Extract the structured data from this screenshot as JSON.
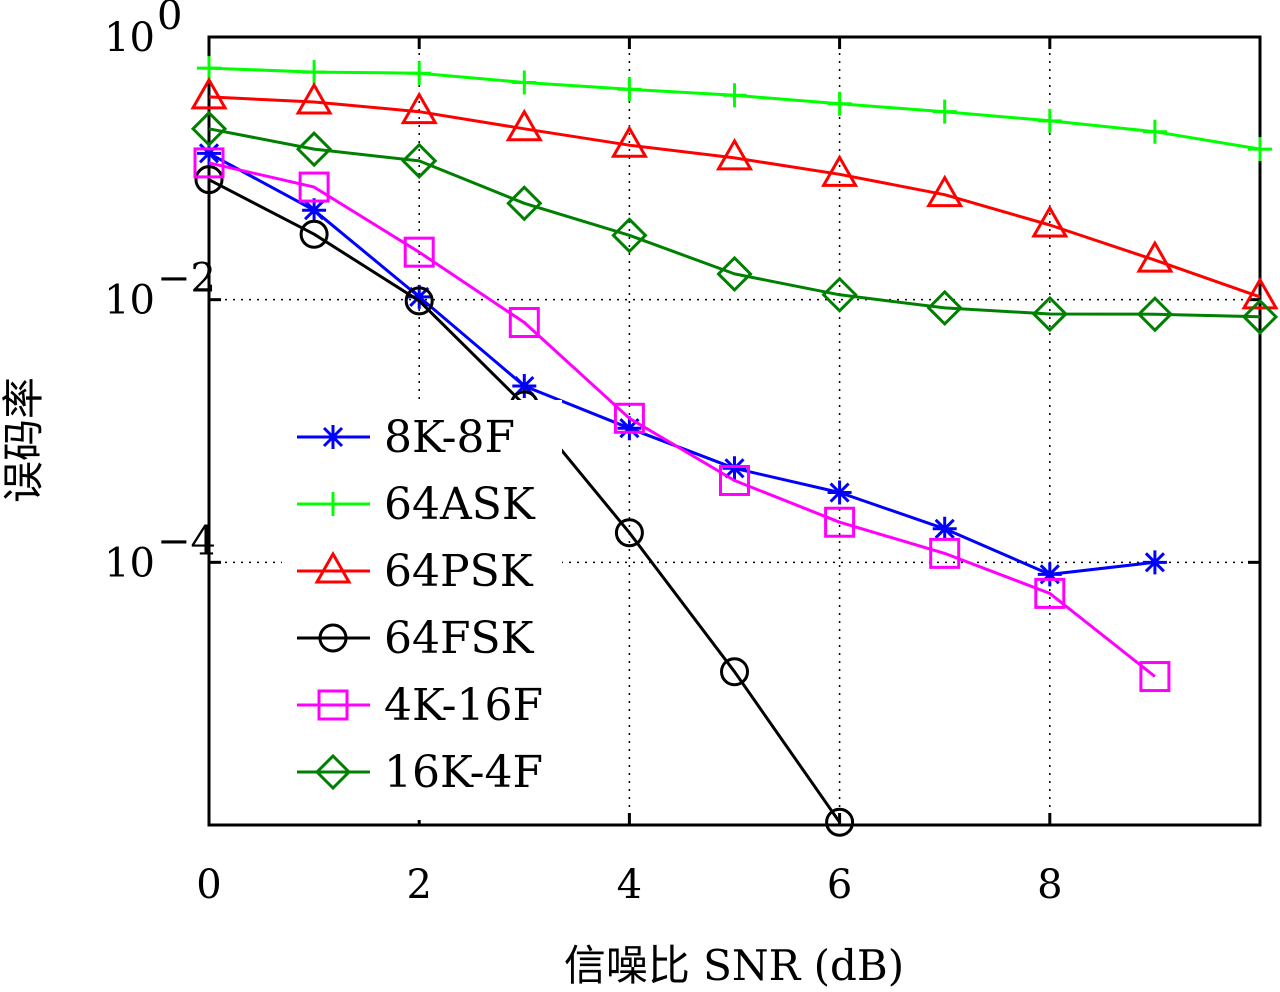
{
  "chart_data": {
    "type": "line",
    "xlabel": "信噪比 SNR (dB)",
    "ylabel": "误码率",
    "xlim": [
      0,
      10
    ],
    "ylim": [
      1e-06,
      1
    ],
    "yscale": "log",
    "grid": true,
    "legend_position": "lower-left",
    "x_ticks": [
      {
        "value": 0,
        "label": "0"
      },
      {
        "value": 2,
        "label": "2"
      },
      {
        "value": 4,
        "label": "4"
      },
      {
        "value": 6,
        "label": "6"
      },
      {
        "value": 8,
        "label": "8"
      }
    ],
    "y_ticks": [
      {
        "value": 1,
        "base": "10",
        "exp": "0"
      },
      {
        "value": 0.01,
        "base": "10",
        "exp": "−2"
      },
      {
        "value": 0.0001,
        "base": "10",
        "exp": "−4"
      }
    ],
    "series": [
      {
        "name": "8K-8F",
        "color": "#0000ff",
        "marker": "star",
        "x": [
          0,
          1,
          2,
          3,
          4,
          5,
          6,
          7,
          8,
          9
        ],
        "y": [
          0.13,
          0.048,
          0.0105,
          0.0022,
          0.00105,
          0.00052,
          0.00034,
          0.00018,
          8.1e-05,
          0.0001
        ]
      },
      {
        "name": "64ASK",
        "color": "#00ff00",
        "marker": "plus",
        "x": [
          0,
          1,
          2,
          3,
          4,
          5,
          6,
          7,
          8,
          9,
          10
        ],
        "y": [
          0.58,
          0.54,
          0.53,
          0.45,
          0.4,
          0.36,
          0.31,
          0.27,
          0.23,
          0.19,
          0.14
        ]
      },
      {
        "name": "64PSK",
        "color": "#ff0000",
        "marker": "triangle",
        "x": [
          0,
          1,
          2,
          3,
          4,
          5,
          6,
          7,
          8,
          9,
          10
        ],
        "y": [
          0.35,
          0.32,
          0.27,
          0.2,
          0.15,
          0.12,
          0.09,
          0.063,
          0.037,
          0.02,
          0.0105
        ]
      },
      {
        "name": "64FSK",
        "color": "#000000",
        "marker": "circle",
        "x": [
          0,
          1,
          2,
          3,
          4,
          5,
          6
        ],
        "y": [
          0.082,
          0.0315,
          0.0098,
          0.00158,
          0.000168,
          1.47e-05,
          1.05e-06
        ]
      },
      {
        "name": "4K-16F",
        "color": "#ff00ff",
        "marker": "square",
        "x": [
          0,
          1,
          2,
          3,
          4,
          5,
          6,
          7,
          8,
          9
        ],
        "y": [
          0.11,
          0.072,
          0.023,
          0.0067,
          0.00125,
          0.00042,
          0.000202,
          0.000117,
          5.8e-05,
          1.35e-05
        ]
      },
      {
        "name": "16K-4F",
        "color": "#008000",
        "marker": "diamond",
        "x": [
          0,
          1,
          2,
          3,
          4,
          5,
          6,
          7,
          8,
          9,
          10
        ],
        "y": [
          0.2,
          0.14,
          0.114,
          0.0542,
          0.0309,
          0.0157,
          0.0109,
          0.00865,
          0.00778,
          0.00775,
          0.0074
        ]
      }
    ]
  }
}
